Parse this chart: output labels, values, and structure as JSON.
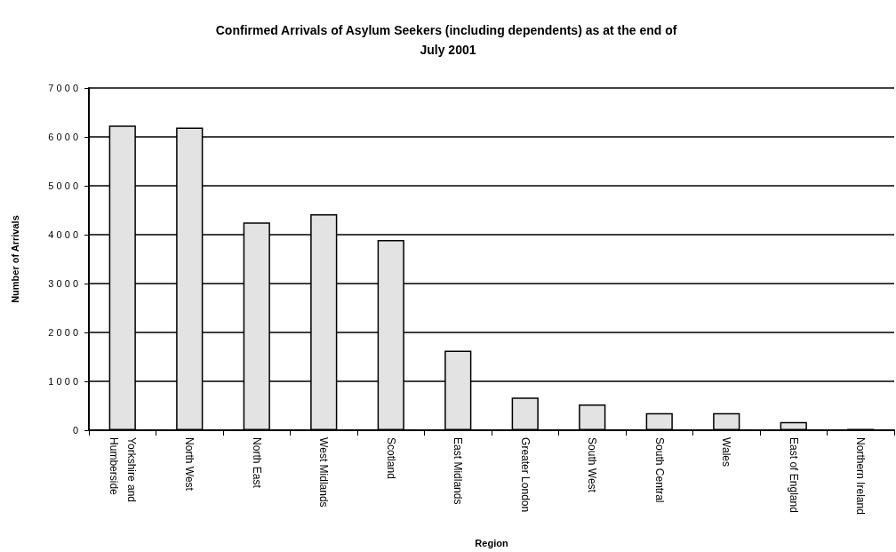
{
  "chart_data": {
    "type": "bar",
    "title": "Confirmed Arrivals of Asylum Seekers (including dependents) as at the end of July 2001",
    "xlabel": "Region",
    "ylabel": "Number of Arrivals",
    "categories": [
      "Yorkshire and Humberside",
      "North West",
      "North East",
      "West Midlands",
      "Scotland",
      "East Midlands",
      "Greater London",
      "South West",
      "South Central",
      "Wales",
      "East of England",
      "Northern Ireland"
    ],
    "values": [
      6230,
      6190,
      4250,
      4420,
      3890,
      1630,
      670,
      530,
      350,
      350,
      170,
      30
    ],
    "color": "#e3e3e3",
    "ylim": [
      0,
      7000
    ],
    "yticks": [
      0,
      1000,
      2000,
      3000,
      4000,
      5000,
      6000,
      7000
    ],
    "grid": "y"
  }
}
